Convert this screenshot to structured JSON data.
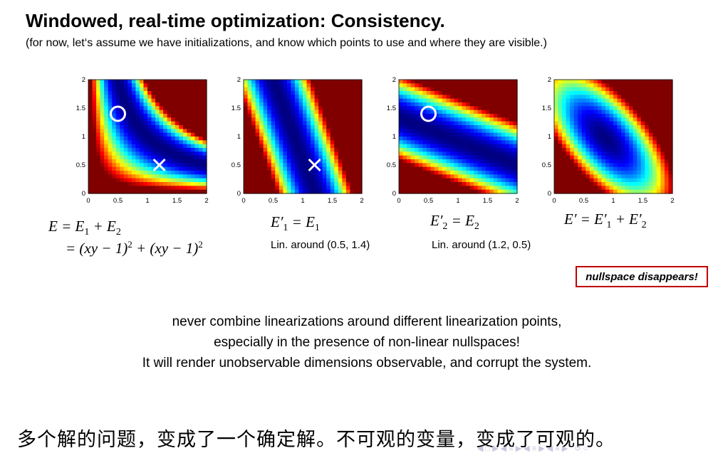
{
  "slide": {
    "title": "Windowed, real-time optimization: Consistency.",
    "subtitle": "(for now, let‘s assume we have initializations, and know which points to use and where they are visible.)"
  },
  "chart_data": [
    {
      "type": "heatmap",
      "colormap": "jet",
      "xlim": [
        0,
        2
      ],
      "ylim": [
        0,
        2
      ],
      "x_ticks": [
        "0",
        "0.5",
        "1",
        "1.5",
        "2"
      ],
      "y_ticks": [
        "0",
        "0.5",
        "1",
        "1.5",
        "2"
      ],
      "markers": [
        {
          "symbol": "circle",
          "x": 0.5,
          "y": 1.4
        },
        {
          "symbol": "cross",
          "x": 1.2,
          "y": 0.5
        }
      ]
    },
    {
      "type": "heatmap",
      "colormap": "jet",
      "xlim": [
        0,
        2
      ],
      "ylim": [
        0,
        2
      ],
      "x_ticks": [
        "0",
        "0.5",
        "1",
        "1.5",
        "2"
      ],
      "y_ticks": [
        "0",
        "0.5",
        "1",
        "1.5",
        "2"
      ],
      "markers": [
        {
          "symbol": "cross",
          "x": 1.2,
          "y": 0.5
        }
      ]
    },
    {
      "type": "heatmap",
      "colormap": "jet",
      "xlim": [
        0,
        2
      ],
      "ylim": [
        0,
        2
      ],
      "x_ticks": [
        "0",
        "0.5",
        "1",
        "1.5",
        "2"
      ],
      "y_ticks": [
        "0",
        "0.5",
        "1",
        "1.5",
        "2"
      ],
      "markers": [
        {
          "symbol": "circle",
          "x": 0.5,
          "y": 1.4
        }
      ]
    },
    {
      "type": "heatmap",
      "colormap": "jet",
      "xlim": [
        0,
        2
      ],
      "ylim": [
        0,
        2
      ],
      "x_ticks": [
        "0",
        "0.5",
        "1",
        "1.5",
        "2"
      ],
      "y_ticks": [
        "0",
        "0.5",
        "1",
        "1.5",
        "2"
      ],
      "markers": []
    }
  ],
  "captions": {
    "p2": "Lin. around (0.5, 1.4)",
    "p3": "Lin. around (1.2, 0.5)"
  },
  "callout": "nullspace disappears!",
  "message": [
    "never combine linearizations around different linearization points,",
    "especially in the presence of non-linear nullspaces!",
    "It will render unobservable dimensions observable, and corrupt the system."
  ],
  "annotation_cn": "多个解的问题，变成了一个确定解。不可观的变量，变成了可观的。",
  "colors": {
    "callout_border": "#c00000",
    "jet_low": "#00007f",
    "jet_high": "#7f0000"
  }
}
